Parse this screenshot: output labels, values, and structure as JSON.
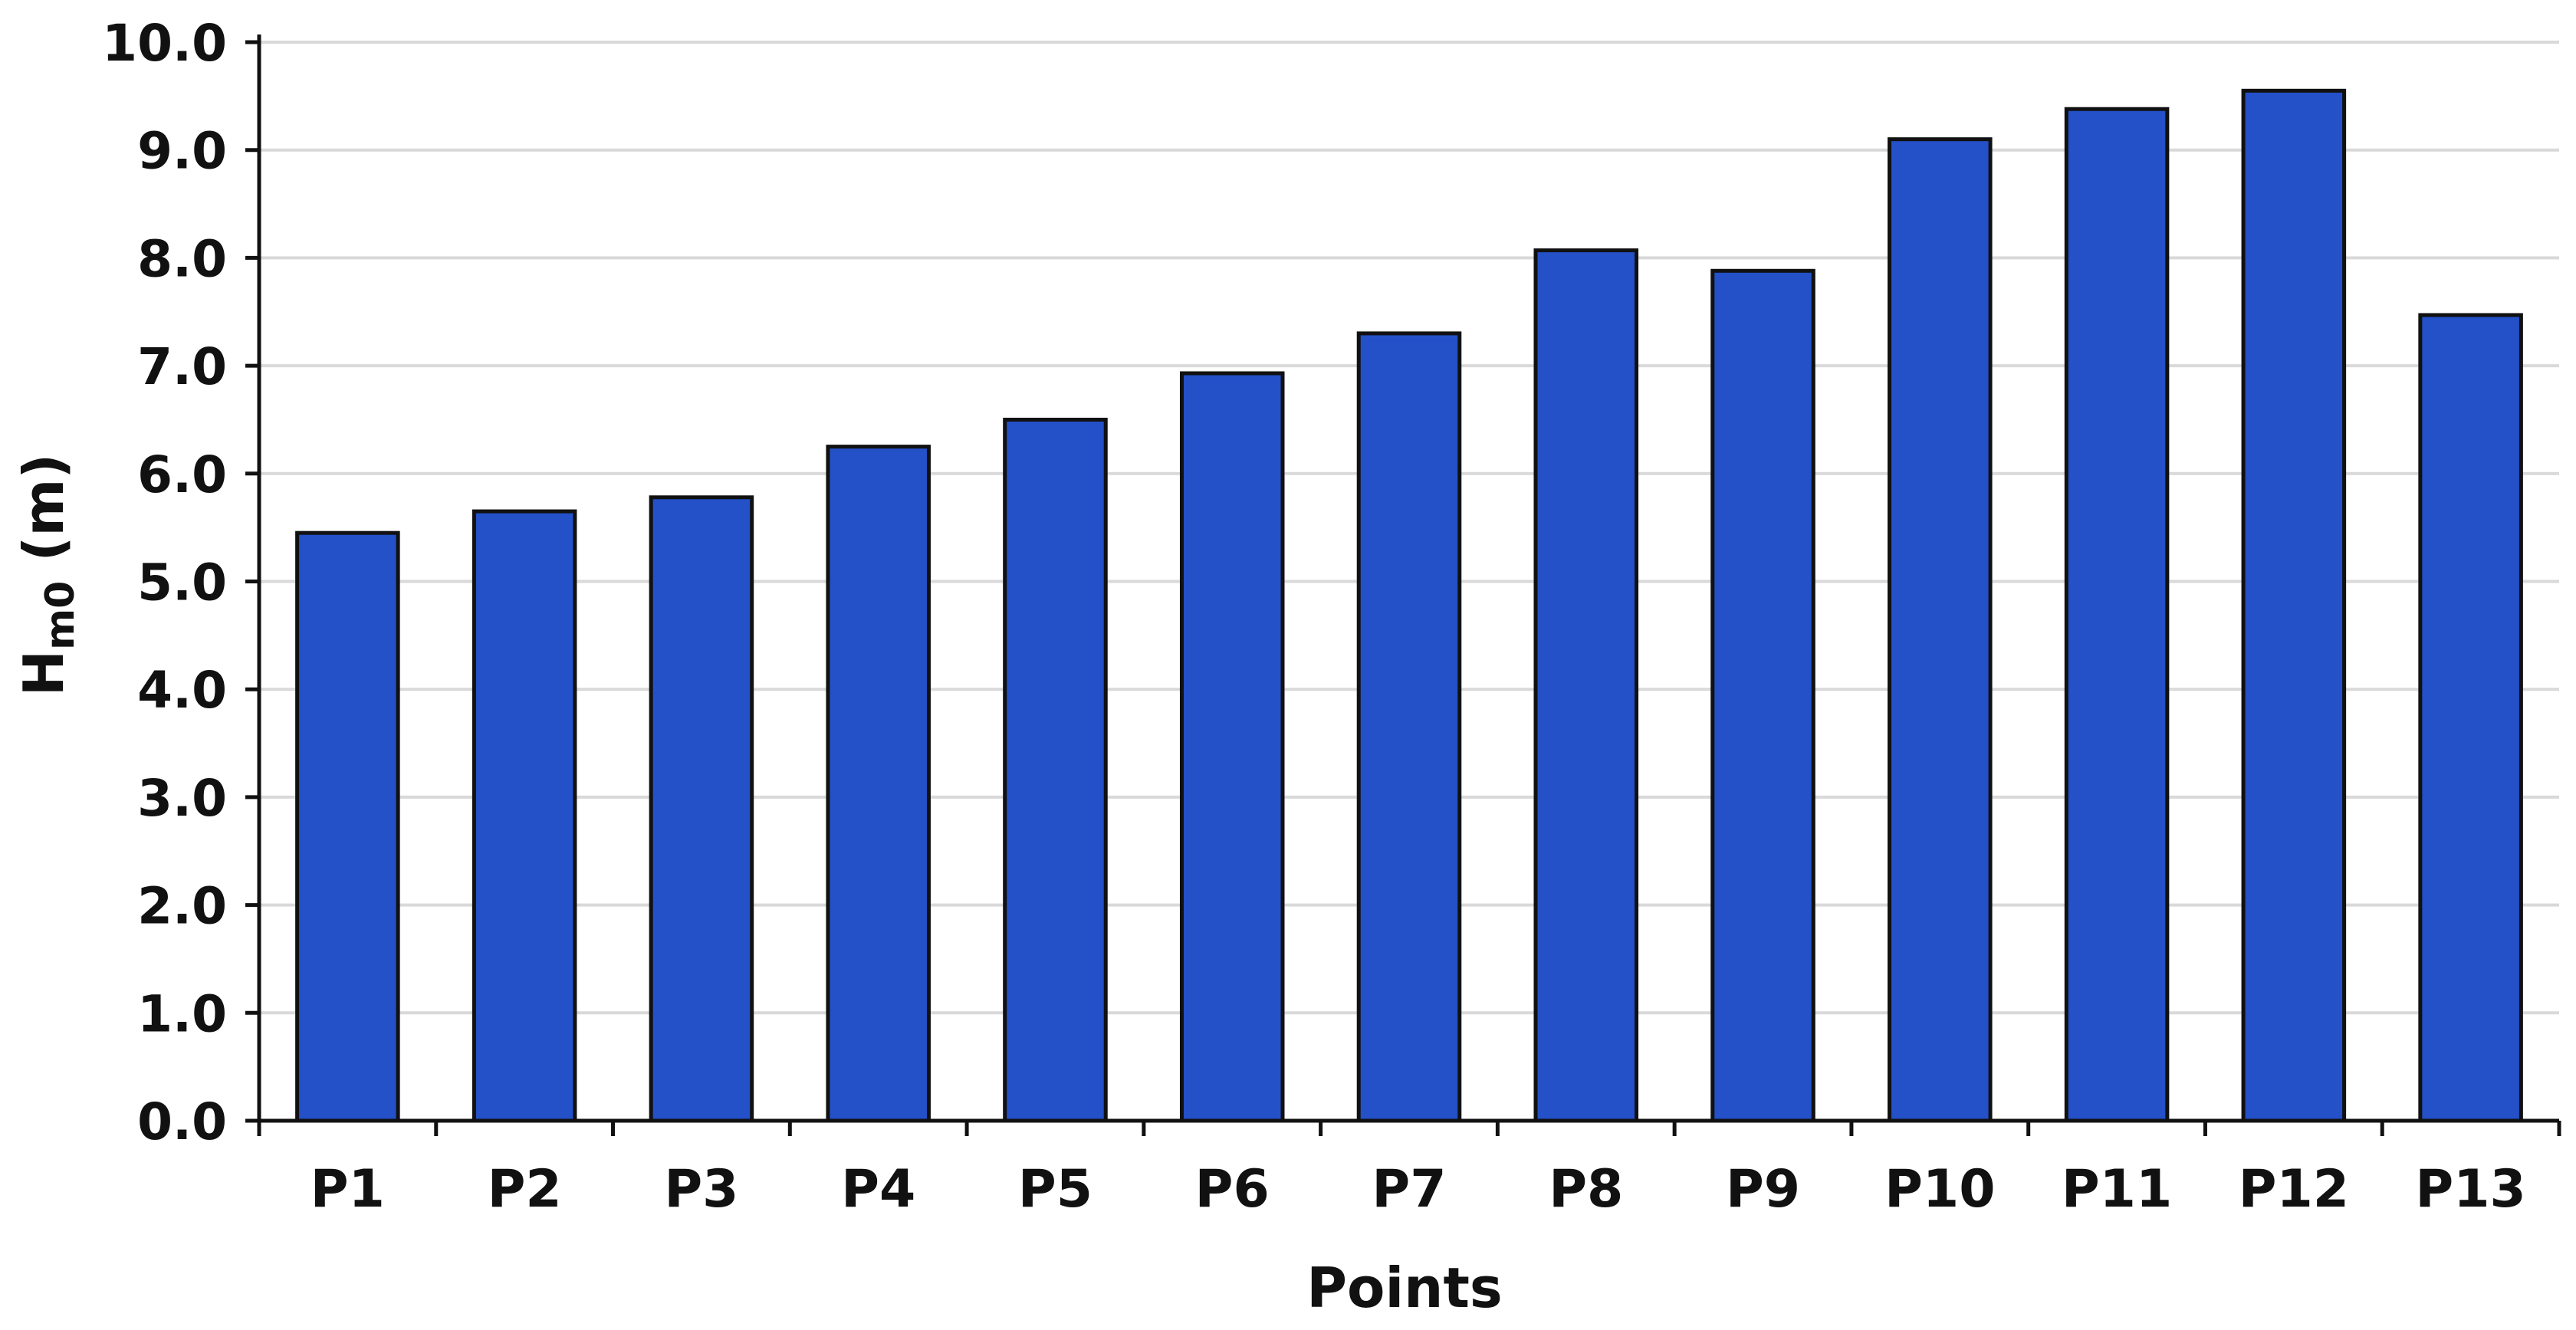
{
  "chart_data": {
    "type": "bar",
    "title": "",
    "xlabel": "Points",
    "ylabel": {
      "main": "H",
      "sub": "m0",
      "unit": " (m)"
    },
    "categories": [
      "P1",
      "P2",
      "P3",
      "P4",
      "P5",
      "P6",
      "P7",
      "P8",
      "P9",
      "P10",
      "P11",
      "P12",
      "P13"
    ],
    "values": [
      5.45,
      5.65,
      5.78,
      6.25,
      6.5,
      6.93,
      7.3,
      8.07,
      7.88,
      9.1,
      9.38,
      9.55,
      7.47
    ],
    "ylim": [
      0,
      10
    ],
    "yticks": [
      "0.0",
      "1.0",
      "2.0",
      "3.0",
      "4.0",
      "5.0",
      "6.0",
      "7.0",
      "8.0",
      "9.0",
      "10.0"
    ],
    "grid": true,
    "legend": "none",
    "colors": {
      "bar": "#2450C8",
      "bar_edge": "#111111",
      "grid": "#D9D9D9",
      "axis": "#111111"
    }
  }
}
